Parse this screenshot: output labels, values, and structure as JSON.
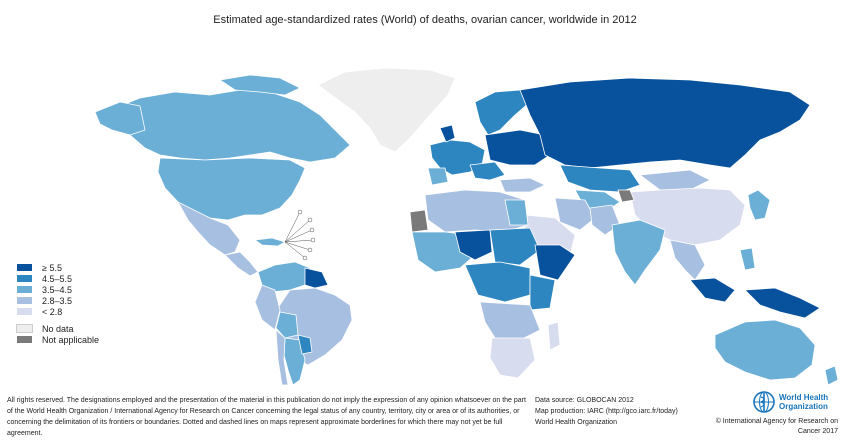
{
  "title": "Estimated age-standardized rates (World) of deaths, ovarian cancer, worldwide in 2012",
  "colors": {
    "c1": "#08519c",
    "c2": "#2e86c1",
    "c3": "#6baed6",
    "c4": "#a7bfe0",
    "c5": "#d8dcef",
    "nodata": "#eeeeee",
    "na": "#7a7a7a",
    "border": "#ffffff"
  },
  "legend": {
    "items": [
      {
        "label": "≥ 5.5",
        "color": "#08519c"
      },
      {
        "label": "4.5–5.5",
        "color": "#2e86c1"
      },
      {
        "label": "3.5–4.5",
        "color": "#6baed6"
      },
      {
        "label": "2.8–3.5",
        "color": "#a7bfe0"
      },
      {
        "label": "< 2.8",
        "color": "#d8dcef"
      }
    ],
    "extra": [
      {
        "label": "No data",
        "color": "#eeeeee"
      },
      {
        "label": "Not applicable",
        "color": "#7a7a7a"
      }
    ]
  },
  "footer": {
    "disclaimer": "All rights reserved. The designations employed and the presentation of the material in this publication do not imply the expression of any opinion whatsoever on the part of the World Health Organization / International Agency for Research on Cancer concerning the legal status of any country, territory, city or area or of its authorities, or concerning the delimitation of its frontiers or boundaries. Dotted and dashed lines on maps represent approximate borderlines for which there may not yet be full agreement.",
    "data_source": "Data source: GLOBOCAN 2012",
    "map_production": "Map production: IARC (http://gco.iarc.fr/today)",
    "org": "World Health Organization",
    "copyright": "© International Agency for Research on Cancer 2017",
    "logo_line1": "World Health",
    "logo_line2": "Organization"
  }
}
